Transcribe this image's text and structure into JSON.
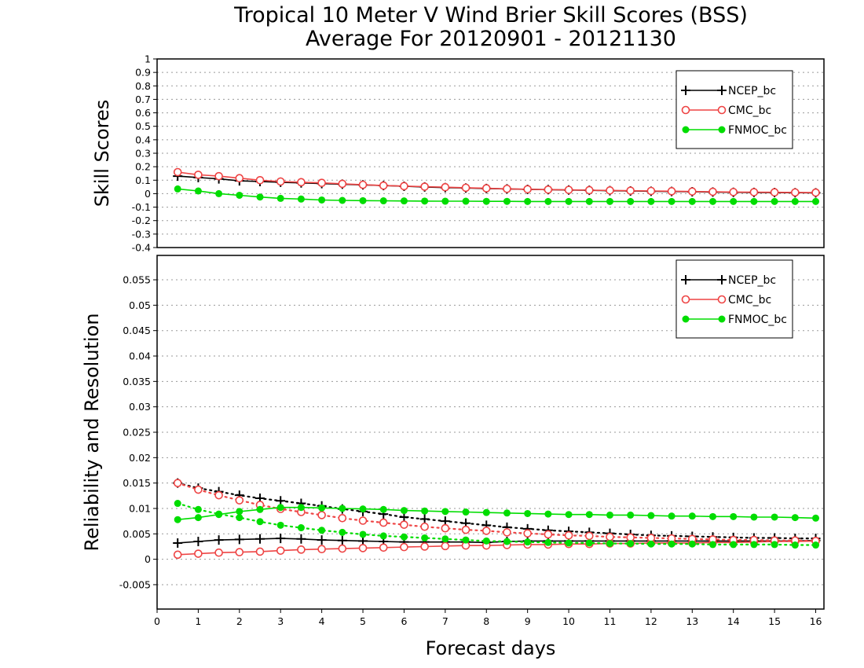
{
  "title_line1": "Tropical 10 Meter V Wind Brier Skill Scores (BSS)",
  "title_line2": "Average For 20120901 - 20121130",
  "colors": {
    "ncep": "#000000",
    "cmc": "#ee4444",
    "fnmoc": "#00dd00"
  },
  "chart_data": [
    {
      "type": "line",
      "ylabel": "Skill Scores",
      "ylim": [
        -0.4,
        1.0
      ],
      "xlim": [
        0,
        16.2
      ],
      "yticks": [
        "-0.4",
        "-0.3",
        "-0.2",
        "-0.1",
        "0",
        "0.1",
        "0.2",
        "0.3",
        "0.4",
        "0.5",
        "0.6",
        "0.7",
        "0.8",
        "0.9",
        "1"
      ],
      "grid": true,
      "legend": "top-right",
      "series": [
        {
          "name": "NCEP_bc",
          "marker": "plus",
          "line": "solid",
          "x": [
            0.5,
            1,
            1.5,
            2,
            2.5,
            3,
            3.5,
            4,
            4.5,
            5,
            5.5,
            6,
            6.5,
            7,
            7.5,
            8,
            8.5,
            9,
            9.5,
            10,
            10.5,
            11,
            11.5,
            12,
            12.5,
            13,
            13.5,
            14,
            14.5,
            15,
            15.5,
            16
          ],
          "y": [
            0.13,
            0.12,
            0.11,
            0.095,
            0.09,
            0.085,
            0.08,
            0.075,
            0.07,
            0.065,
            0.06,
            0.055,
            0.05,
            0.045,
            0.042,
            0.038,
            0.035,
            0.032,
            0.03,
            0.027,
            0.025,
            0.022,
            0.02,
            0.018,
            0.016,
            0.014,
            0.012,
            0.01,
            0.009,
            0.008,
            0.007,
            0.006
          ]
        },
        {
          "name": "CMC_bc",
          "marker": "open-circle",
          "line": "solid",
          "x": [
            0.5,
            1,
            1.5,
            2,
            2.5,
            3,
            3.5,
            4,
            4.5,
            5,
            5.5,
            6,
            6.5,
            7,
            7.5,
            8,
            8.5,
            9,
            9.5,
            10,
            10.5,
            11,
            11.5,
            12,
            12.5,
            13,
            13.5,
            14,
            14.5,
            15,
            15.5,
            16
          ],
          "y": [
            0.16,
            0.14,
            0.13,
            0.115,
            0.1,
            0.09,
            0.085,
            0.08,
            0.073,
            0.066,
            0.06,
            0.056,
            0.052,
            0.048,
            0.044,
            0.04,
            0.036,
            0.033,
            0.03,
            0.028,
            0.026,
            0.024,
            0.022,
            0.02,
            0.018,
            0.016,
            0.014,
            0.012,
            0.011,
            0.01,
            0.009,
            0.008
          ]
        },
        {
          "name": "FNMOC_bc",
          "marker": "filled-circle",
          "line": "solid",
          "x": [
            0.5,
            1,
            1.5,
            2,
            2.5,
            3,
            3.5,
            4,
            4.5,
            5,
            5.5,
            6,
            6.5,
            7,
            7.5,
            8,
            8.5,
            9,
            9.5,
            10,
            10.5,
            11,
            11.5,
            12,
            12.5,
            13,
            13.5,
            14,
            14.5,
            15,
            15.5,
            16
          ],
          "y": [
            0.035,
            0.02,
            0.0,
            -0.012,
            -0.025,
            -0.035,
            -0.04,
            -0.047,
            -0.05,
            -0.052,
            -0.053,
            -0.054,
            -0.055,
            -0.056,
            -0.056,
            -0.057,
            -0.057,
            -0.058,
            -0.058,
            -0.058,
            -0.058,
            -0.058,
            -0.058,
            -0.058,
            -0.058,
            -0.058,
            -0.058,
            -0.058,
            -0.058,
            -0.058,
            -0.058,
            -0.058
          ]
        }
      ]
    },
    {
      "type": "line",
      "ylabel": "Reliability and Resolution",
      "xlabel": "Forecast days",
      "ylim": [
        -0.0098,
        0.0598
      ],
      "xlim": [
        0,
        16.2
      ],
      "xticks": [
        "0",
        "1",
        "2",
        "3",
        "4",
        "5",
        "6",
        "7",
        "8",
        "9",
        "10",
        "11",
        "12",
        "13",
        "14",
        "15",
        "16"
      ],
      "yticks": [
        "-0.005",
        "0",
        "0.005",
        "0.01",
        "0.015",
        "0.02",
        "0.025",
        "0.03",
        "0.035",
        "0.04",
        "0.045",
        "0.05",
        "0.055"
      ],
      "grid": true,
      "legend": "top-right",
      "series": [
        {
          "name": "NCEP_bc",
          "role": "reliability",
          "marker": "plus",
          "line": "solid",
          "x": [
            0.5,
            1,
            1.5,
            2,
            2.5,
            3,
            3.5,
            4,
            4.5,
            5,
            5.5,
            6,
            6.5,
            7,
            7.5,
            8,
            8.5,
            9,
            9.5,
            10,
            10.5,
            11,
            11.5,
            12,
            12.5,
            13,
            13.5,
            14,
            14.5,
            15,
            15.5,
            16
          ],
          "y": [
            0.0032,
            0.0035,
            0.0038,
            0.0039,
            0.004,
            0.0041,
            0.004,
            0.0038,
            0.0037,
            0.0036,
            0.0035,
            0.0034,
            0.0034,
            0.0034,
            0.0034,
            0.0033,
            0.0035,
            0.0036,
            0.0036,
            0.0036,
            0.0036,
            0.0036,
            0.0036,
            0.0036,
            0.0036,
            0.0036,
            0.0036,
            0.0036,
            0.0036,
            0.0036,
            0.0036,
            0.0037
          ]
        },
        {
          "name": "NCEP_bc",
          "role": "resolution",
          "marker": "plus",
          "line": "dotted",
          "x": [
            0.5,
            1,
            1.5,
            2,
            2.5,
            3,
            3.5,
            4,
            4.5,
            5,
            5.5,
            6,
            6.5,
            7,
            7.5,
            8,
            8.5,
            9,
            9.5,
            10,
            10.5,
            11,
            11.5,
            12,
            12.5,
            13,
            13.5,
            14,
            14.5,
            15,
            15.5,
            16
          ],
          "y": [
            0.015,
            0.014,
            0.0133,
            0.0126,
            0.012,
            0.0115,
            0.011,
            0.0105,
            0.0099,
            0.0094,
            0.0089,
            0.0083,
            0.0079,
            0.0075,
            0.0071,
            0.0067,
            0.0063,
            0.006,
            0.0057,
            0.0055,
            0.0053,
            0.0051,
            0.0049,
            0.0047,
            0.0046,
            0.0045,
            0.0044,
            0.0043,
            0.0042,
            0.0042,
            0.0041,
            0.0041
          ]
        },
        {
          "name": "CMC_bc",
          "role": "reliability",
          "marker": "open-circle",
          "line": "solid",
          "x": [
            0.5,
            1,
            1.5,
            2,
            2.5,
            3,
            3.5,
            4,
            4.5,
            5,
            5.5,
            6,
            6.5,
            7,
            7.5,
            8,
            8.5,
            9,
            9.5,
            10,
            10.5,
            11,
            11.5,
            12,
            12.5,
            13,
            13.5,
            14,
            14.5,
            15,
            15.5,
            16
          ],
          "y": [
            0.0009,
            0.0011,
            0.0013,
            0.0014,
            0.0015,
            0.0017,
            0.0019,
            0.002,
            0.0021,
            0.0022,
            0.0023,
            0.0024,
            0.0025,
            0.0026,
            0.0027,
            0.0027,
            0.0028,
            0.0029,
            0.0029,
            0.003,
            0.003,
            0.0031,
            0.0031,
            0.0032,
            0.0032,
            0.0032,
            0.0033,
            0.0033,
            0.0034,
            0.0035,
            0.0035,
            0.0036
          ]
        },
        {
          "name": "CMC_bc",
          "role": "resolution",
          "marker": "open-circle",
          "line": "dotted",
          "x": [
            0.5,
            1,
            1.5,
            2,
            2.5,
            3,
            3.5,
            4,
            4.5,
            5,
            5.5,
            6,
            6.5,
            7,
            7.5,
            8,
            8.5,
            9,
            9.5,
            10,
            10.5,
            11,
            11.5,
            12,
            12.5,
            13,
            13.5,
            14,
            14.5,
            15,
            15.5,
            16
          ],
          "y": [
            0.015,
            0.0137,
            0.0126,
            0.0116,
            0.0107,
            0.0099,
            0.0093,
            0.0087,
            0.0081,
            0.0076,
            0.0072,
            0.0068,
            0.0064,
            0.0061,
            0.0058,
            0.0056,
            0.0053,
            0.0051,
            0.0049,
            0.0047,
            0.0046,
            0.0044,
            0.0043,
            0.0042,
            0.0041,
            0.004,
            0.0039,
            0.0038,
            0.0038,
            0.0037,
            0.0037,
            0.0036
          ]
        },
        {
          "name": "FNMOC_bc",
          "role": "reliability",
          "marker": "filled-circle",
          "line": "solid",
          "x": [
            0.5,
            1,
            1.5,
            2,
            2.5,
            3,
            3.5,
            4,
            4.5,
            5,
            5.5,
            6,
            6.5,
            7,
            7.5,
            8,
            8.5,
            9,
            9.5,
            10,
            10.5,
            11,
            11.5,
            12,
            12.5,
            13,
            13.5,
            14,
            14.5,
            15,
            15.5,
            16
          ],
          "y": [
            0.0078,
            0.0082,
            0.0088,
            0.0094,
            0.0098,
            0.0102,
            0.0102,
            0.0101,
            0.01,
            0.0099,
            0.0098,
            0.0096,
            0.0095,
            0.0094,
            0.0093,
            0.0092,
            0.0091,
            0.009,
            0.0089,
            0.0088,
            0.0088,
            0.0087,
            0.0087,
            0.0086,
            0.0085,
            0.0085,
            0.0084,
            0.0084,
            0.0083,
            0.0083,
            0.0082,
            0.0081
          ]
        },
        {
          "name": "FNMOC_bc",
          "role": "resolution",
          "marker": "filled-circle",
          "line": "dotted",
          "x": [
            0.5,
            1,
            1.5,
            2,
            2.5,
            3,
            3.5,
            4,
            4.5,
            5,
            5.5,
            6,
            6.5,
            7,
            7.5,
            8,
            8.5,
            9,
            9.5,
            10,
            10.5,
            11,
            11.5,
            12,
            12.5,
            13,
            13.5,
            14,
            14.5,
            15,
            15.5,
            16
          ],
          "y": [
            0.011,
            0.0098,
            0.0089,
            0.0082,
            0.0074,
            0.0067,
            0.0062,
            0.0057,
            0.0053,
            0.0049,
            0.0046,
            0.0044,
            0.0042,
            0.004,
            0.0038,
            0.0036,
            0.0035,
            0.0034,
            0.0033,
            0.0032,
            0.0032,
            0.0031,
            0.0031,
            0.003,
            0.003,
            0.003,
            0.0029,
            0.0029,
            0.0029,
            0.0029,
            0.0028,
            0.0028
          ]
        }
      ]
    }
  ]
}
